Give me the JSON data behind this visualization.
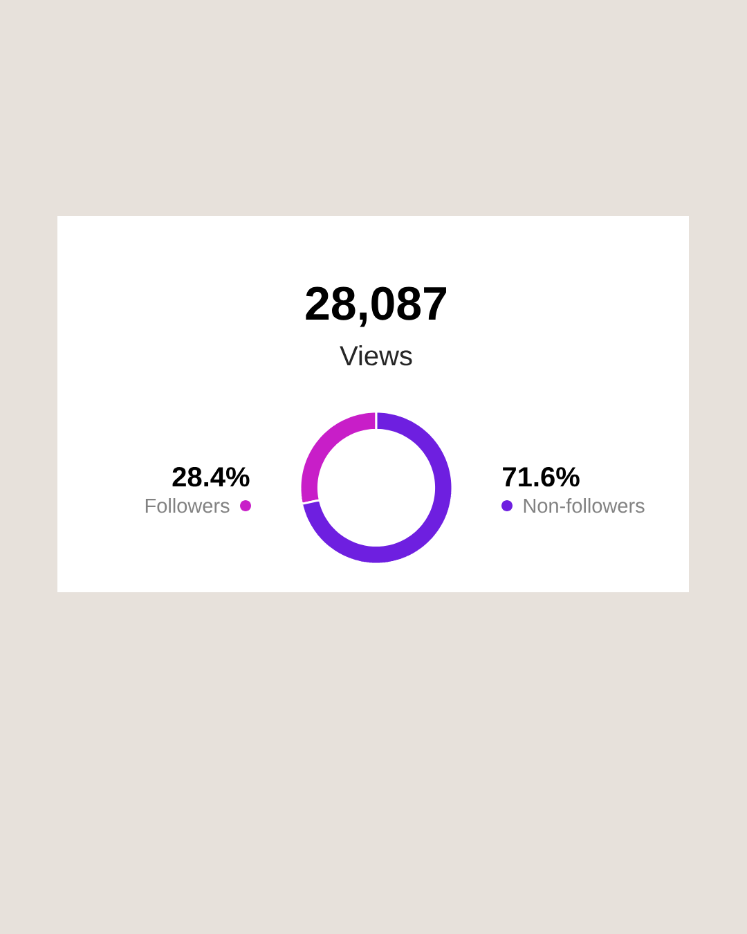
{
  "chart_data": {
    "type": "donut",
    "title": "28,087",
    "subtitle": "Views",
    "categories": [
      "Followers",
      "Non-followers"
    ],
    "values": [
      28.4,
      71.6
    ],
    "colors": [
      "#c81ec8",
      "#6e1fe0"
    ],
    "value_labels": [
      "28.4%",
      "71.6%"
    ]
  }
}
